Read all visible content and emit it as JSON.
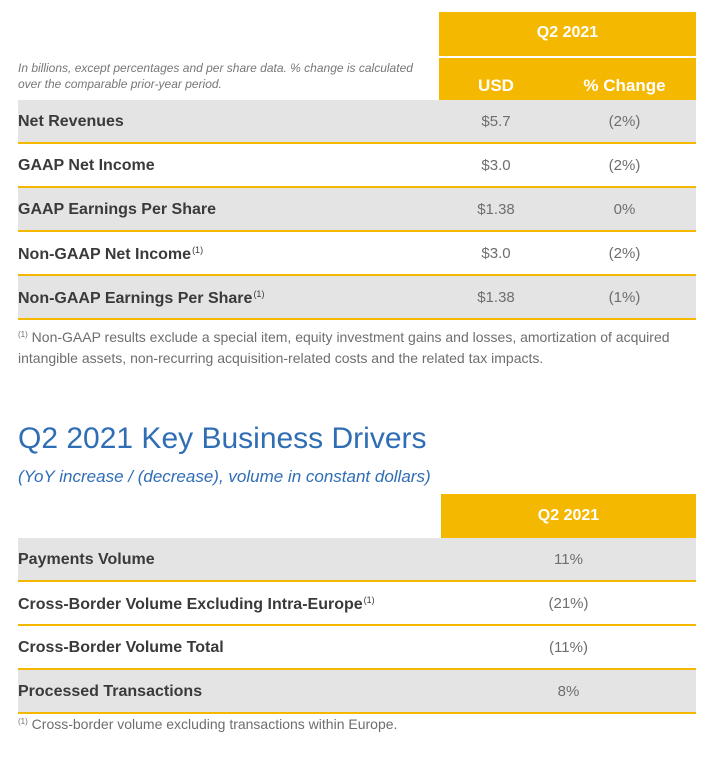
{
  "table1": {
    "period": "Q2 2021",
    "note": "In billions, except percentages and per share data. % change is calculated over the comparable prior-year period.",
    "col_usd": "USD",
    "col_change": "% Change",
    "rows": [
      {
        "label": "Net Revenues",
        "sup": "",
        "usd": "$5.7",
        "change": "(2%)"
      },
      {
        "label": "GAAP Net Income",
        "sup": "",
        "usd": "$3.0",
        "change": "(2%)"
      },
      {
        "label": "GAAP Earnings Per Share",
        "sup": "",
        "usd": "$1.38",
        "change": "0%"
      },
      {
        "label": "Non-GAAP Net Income",
        "sup": "(1)",
        "usd": "$3.0",
        "change": "(2%)"
      },
      {
        "label": "Non-GAAP Earnings Per Share",
        "sup": "(1)",
        "usd": "$1.38",
        "change": "(1%)"
      }
    ],
    "footnote_mark": "(1)",
    "footnote": "Non-GAAP results exclude a special item, equity investment gains and losses, amortization of acquired intangible assets, non-recurring acquisition-related costs and the related tax impacts."
  },
  "section": {
    "title": "Q2 2021 Key Business Drivers",
    "subtitle": "(YoY increase / (decrease), volume in constant dollars)"
  },
  "table2": {
    "period": "Q2 2021",
    "rows": [
      {
        "label": "Payments Volume",
        "sup": "",
        "value": "11%"
      },
      {
        "label": "Cross-Border Volume Excluding Intra-Europe",
        "sup": "(1)",
        "value": "(21%)"
      },
      {
        "label": "Cross-Border Volume Total",
        "sup": "",
        "value": "(11%)"
      },
      {
        "label": "Processed Transactions",
        "sup": "",
        "value": "8%"
      }
    ],
    "footnote_mark": "(1)",
    "footnote": "Cross-border volume excluding transactions within Europe."
  },
  "colors": {
    "accent": "#f5b800",
    "title": "#2f6db5",
    "row_shade": "#e4e4e4"
  }
}
